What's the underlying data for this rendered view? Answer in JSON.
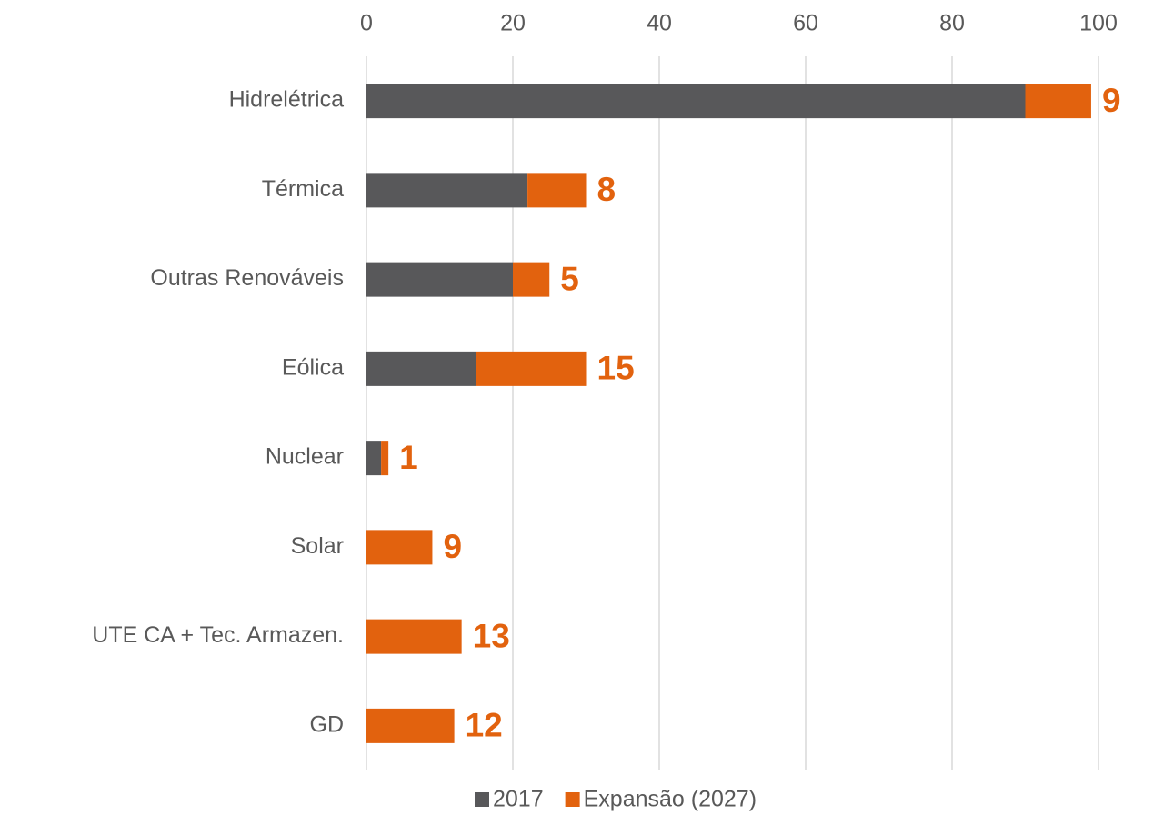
{
  "chart_data": {
    "type": "stacked_barh",
    "categories": [
      "Hidrelétrica",
      "Térmica",
      "Outras Renováveis",
      "Eólica",
      "Nuclear",
      "Solar",
      "UTE CA + Tec. Armazen.",
      "GD"
    ],
    "series": [
      {
        "name": "2017",
        "color": "#58585a",
        "values": [
          90,
          22,
          20,
          15,
          2,
          0,
          0,
          0
        ]
      },
      {
        "name": "Expansão (2027)",
        "color": "#e2620e",
        "values": [
          9,
          8,
          5,
          15,
          1,
          9,
          13,
          12
        ]
      }
    ],
    "xlim": [
      0,
      100
    ],
    "xticks": [
      0,
      20,
      40,
      60,
      80,
      100
    ],
    "grid": true,
    "legend": "bottom",
    "data_labels_series": 1
  }
}
